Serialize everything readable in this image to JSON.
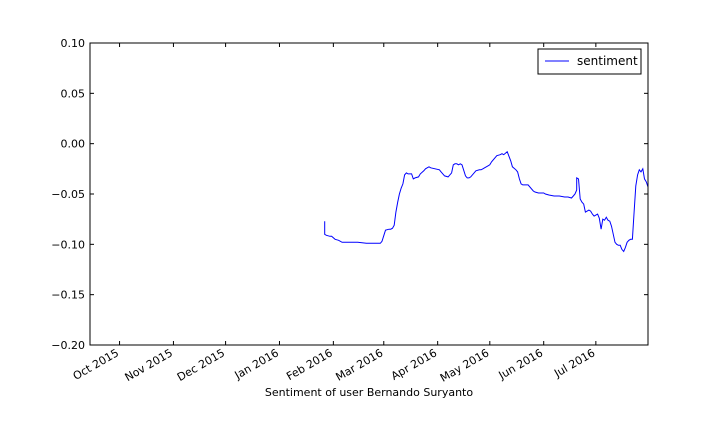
{
  "chart_data": {
    "type": "line",
    "title": "",
    "xlabel": "Sentiment of user Bernando Suryanto",
    "ylabel": "",
    "xlim": [
      "2015-09-14",
      "2016-07-31"
    ],
    "ylim": [
      -0.2,
      0.1
    ],
    "yticks": [
      0.1,
      0.05,
      0.0,
      -0.05,
      -0.1,
      -0.15,
      -0.2
    ],
    "ytick_labels": [
      "0.10",
      "0.05",
      "0.00",
      "−0.05",
      "−0.10",
      "−0.15",
      "−0.20"
    ],
    "xticks": [
      "2015-10-01",
      "2015-11-01",
      "2015-12-01",
      "2016-01-01",
      "2016-02-01",
      "2016-03-01",
      "2016-04-01",
      "2016-05-01",
      "2016-06-01",
      "2016-07-01"
    ],
    "xtick_labels": [
      "Oct 2015",
      "Nov 2015",
      "Dec 2015",
      "Jan 2016",
      "Feb 2016",
      "Mar 2016",
      "Apr 2016",
      "May 2016",
      "Jun 2016",
      "Jul 2016"
    ],
    "grid": false,
    "legend_position": "top-right",
    "series": [
      {
        "name": "sentiment",
        "color": "#0000ff",
        "x": [
          "2016-01-27",
          "2016-01-27",
          "2016-01-28",
          "2016-01-30",
          "2016-01-31",
          "2016-02-02",
          "2016-02-04",
          "2016-02-06",
          "2016-02-10",
          "2016-02-15",
          "2016-02-20",
          "2016-02-25",
          "2016-02-28",
          "2016-02-29",
          "2016-03-02",
          "2016-03-04",
          "2016-03-05",
          "2016-03-06",
          "2016-03-07",
          "2016-03-08",
          "2016-03-09",
          "2016-03-10",
          "2016-03-11",
          "2016-03-12",
          "2016-03-13",
          "2016-03-14",
          "2016-03-15",
          "2016-03-17",
          "2016-03-18",
          "2016-03-19",
          "2016-03-21",
          "2016-03-22",
          "2016-03-24",
          "2016-03-25",
          "2016-03-26",
          "2016-03-27",
          "2016-03-28",
          "2016-04-02",
          "2016-04-03",
          "2016-04-05",
          "2016-04-07",
          "2016-04-09",
          "2016-04-10",
          "2016-04-11",
          "2016-04-12",
          "2016-04-13",
          "2016-04-14",
          "2016-04-15",
          "2016-04-17",
          "2016-04-18",
          "2016-04-19",
          "2016-04-20",
          "2016-04-23",
          "2016-04-25",
          "2016-04-26",
          "2016-04-27",
          "2016-04-28",
          "2016-04-30",
          "2016-05-01",
          "2016-05-02",
          "2016-05-05",
          "2016-05-07",
          "2016-05-08",
          "2016-05-09",
          "2016-05-11",
          "2016-05-13",
          "2016-05-14",
          "2016-05-16",
          "2016-05-17",
          "2016-05-18",
          "2016-05-19",
          "2016-05-20",
          "2016-05-21",
          "2016-05-23",
          "2016-05-26",
          "2016-05-27",
          "2016-05-29",
          "2016-06-01",
          "2016-06-02",
          "2016-06-04",
          "2016-06-07",
          "2016-06-10",
          "2016-06-13",
          "2016-06-15",
          "2016-06-17",
          "2016-06-18",
          "2016-06-19",
          "2016-06-20",
          "2016-06-20",
          "2016-06-21",
          "2016-06-22",
          "2016-06-23",
          "2016-06-24",
          "2016-06-25",
          "2016-06-26",
          "2016-06-27",
          "2016-06-28",
          "2016-06-29",
          "2016-06-30",
          "2016-07-02",
          "2016-07-03",
          "2016-07-04",
          "2016-07-05",
          "2016-07-06",
          "2016-07-07",
          "2016-07-08",
          "2016-07-09",
          "2016-07-10",
          "2016-07-12",
          "2016-07-13",
          "2016-07-14",
          "2016-07-15",
          "2016-07-16",
          "2016-07-17",
          "2016-07-18",
          "2016-07-19",
          "2016-07-20",
          "2016-07-21",
          "2016-07-22",
          "2016-07-23",
          "2016-07-24",
          "2016-07-25",
          "2016-07-26",
          "2016-07-27",
          "2016-07-28",
          "2016-07-29",
          "2016-07-30",
          "2016-07-31"
        ],
        "y": [
          -0.077,
          -0.09,
          -0.091,
          -0.092,
          -0.092,
          -0.095,
          -0.096,
          -0.098,
          -0.098,
          -0.098,
          -0.099,
          -0.099,
          -0.099,
          -0.097,
          -0.086,
          -0.085,
          -0.085,
          -0.084,
          -0.081,
          -0.068,
          -0.058,
          -0.05,
          -0.044,
          -0.04,
          -0.031,
          -0.029,
          -0.03,
          -0.03,
          -0.035,
          -0.034,
          -0.033,
          -0.03,
          -0.027,
          -0.025,
          -0.024,
          -0.023,
          -0.024,
          -0.026,
          -0.028,
          -0.032,
          -0.033,
          -0.029,
          -0.021,
          -0.02,
          -0.02,
          -0.021,
          -0.02,
          -0.021,
          -0.032,
          -0.034,
          -0.034,
          -0.033,
          -0.027,
          -0.026,
          -0.026,
          -0.025,
          -0.024,
          -0.022,
          -0.021,
          -0.018,
          -0.012,
          -0.011,
          -0.01,
          -0.011,
          -0.008,
          -0.017,
          -0.023,
          -0.026,
          -0.028,
          -0.035,
          -0.04,
          -0.041,
          -0.041,
          -0.041,
          -0.047,
          -0.048,
          -0.049,
          -0.049,
          -0.05,
          -0.051,
          -0.052,
          -0.052,
          -0.053,
          -0.053,
          -0.054,
          -0.052,
          -0.05,
          -0.046,
          -0.034,
          -0.035,
          -0.055,
          -0.058,
          -0.06,
          -0.068,
          -0.067,
          -0.066,
          -0.067,
          -0.07,
          -0.072,
          -0.07,
          -0.074,
          -0.085,
          -0.075,
          -0.076,
          -0.073,
          -0.076,
          -0.077,
          -0.082,
          -0.098,
          -0.1,
          -0.101,
          -0.101,
          -0.105,
          -0.107,
          -0.103,
          -0.098,
          -0.096,
          -0.095,
          -0.095,
          -0.068,
          -0.042,
          -0.031,
          -0.026,
          -0.028,
          -0.025,
          -0.035,
          -0.038,
          -0.043
        ]
      }
    ]
  }
}
